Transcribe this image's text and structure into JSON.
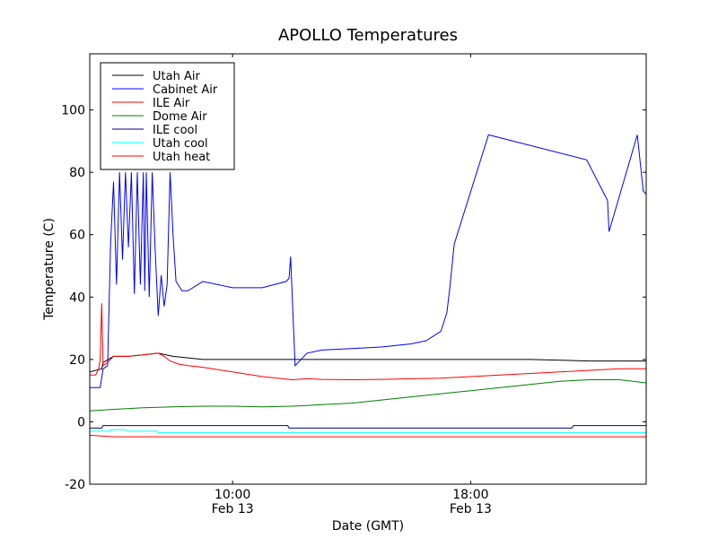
{
  "chart_data": {
    "type": "line",
    "title": "APOLLO Temperatures",
    "xlabel": "Date (GMT)",
    "ylabel": "Temperature (C)",
    "x_unit": "hours (GMT)",
    "xlim": [
      5.2,
      23.9
    ],
    "ylim": [
      -20,
      118
    ],
    "yticks": [
      -20,
      0,
      20,
      40,
      60,
      80,
      100
    ],
    "xticks": [
      {
        "value": 10,
        "label": "10:00",
        "sublabel": "Feb 13"
      },
      {
        "value": 18,
        "label": "18:00",
        "sublabel": "Feb 13"
      }
    ],
    "grid": false,
    "legend_position": "top-left",
    "series": [
      {
        "name": "Utah Air",
        "color": "#000000",
        "x": [
          5.2,
          5.6,
          5.65,
          6.0,
          6.5,
          7.0,
          7.5,
          8.0,
          9.0,
          10.0,
          11.0,
          11.8,
          12.5,
          14.0,
          16.0,
          18.0,
          20.0,
          22.0,
          23.9
        ],
        "y": [
          16,
          17,
          19,
          21,
          21,
          21.5,
          22,
          21,
          20,
          20,
          20,
          20,
          20,
          20,
          20,
          20,
          20,
          19.5,
          19.5
        ]
      },
      {
        "name": "Cabinet Air",
        "color": "#0000ff",
        "x": [
          5.2,
          5.55,
          5.65,
          5.8,
          5.9,
          6.0,
          6.1,
          6.2,
          6.3,
          6.4,
          6.5,
          6.6,
          6.7,
          6.8,
          6.9,
          7.0,
          7.05,
          7.1,
          7.2,
          7.3,
          7.4,
          7.5,
          7.6,
          7.7,
          7.8,
          7.9,
          8.0,
          8.1,
          8.3,
          8.5,
          9.0,
          10.0,
          11.0,
          11.8,
          11.9,
          11.95,
          12.1,
          12.5,
          13.0,
          14.0,
          15.0,
          16.0,
          16.5,
          17.0,
          17.2,
          17.3,
          17.45,
          18.6,
          21.9,
          22.6,
          22.65,
          23.6,
          23.7,
          23.8,
          23.9
        ],
        "y": [
          11,
          11,
          17,
          18,
          57,
          77,
          44,
          80,
          52,
          80,
          56,
          80,
          41,
          80,
          44,
          80,
          42,
          80,
          40,
          80,
          55,
          34,
          47,
          37,
          44,
          80,
          60,
          45,
          42,
          42,
          45,
          43,
          43,
          45,
          46,
          53,
          18,
          22,
          23,
          23.5,
          24,
          25,
          26,
          29,
          35,
          43,
          57,
          92,
          84,
          71,
          61,
          92,
          83,
          74,
          73
        ]
      },
      {
        "name": "ILE Air",
        "color": "#ff0000",
        "x": [
          5.2,
          5.4,
          5.5,
          5.55,
          5.6,
          5.65,
          5.8,
          6.0,
          6.5,
          7.0,
          7.5,
          7.7,
          7.9,
          8.2,
          8.5,
          9.0,
          10.0,
          11.0,
          11.5,
          12.0,
          12.5,
          13.0,
          14.0,
          15.0,
          16.0,
          17.0,
          18.0,
          19.0,
          20.0,
          21.0,
          22.0,
          23.0,
          23.9
        ],
        "y": [
          15,
          15,
          17,
          20,
          38,
          18,
          19,
          21,
          21,
          21.5,
          22,
          21,
          19.5,
          18.5,
          18,
          17.5,
          16,
          14.5,
          14,
          13.5,
          13.8,
          13.6,
          13.5,
          13.6,
          13.8,
          14,
          14.5,
          15,
          15.5,
          16,
          16.5,
          17,
          17
        ]
      },
      {
        "name": "Dome Air",
        "color": "#008000",
        "x": [
          5.2,
          6.0,
          7.0,
          8.0,
          9.0,
          10.0,
          11.0,
          12.0,
          12.5,
          13.0,
          14.0,
          15.0,
          16.0,
          17.0,
          18.0,
          19.0,
          20.0,
          21.0,
          22.0,
          23.0,
          23.9
        ],
        "y": [
          3.5,
          4.0,
          4.5,
          4.8,
          5.0,
          5.0,
          4.8,
          5.0,
          5.2,
          5.5,
          6.0,
          7.0,
          8.0,
          9.0,
          10.0,
          11.0,
          12.0,
          13.0,
          13.5,
          13.5,
          12.5
        ]
      },
      {
        "name": "ILE cool",
        "color": "#000080",
        "x": [
          5.2,
          5.6,
          5.65,
          11.85,
          11.9,
          21.4,
          21.45,
          23.9
        ],
        "y": [
          -2,
          -2,
          -1.2,
          -1.2,
          -2,
          -2,
          -1.2,
          -1.2
        ]
      },
      {
        "name": "Utah cool",
        "color": "#00ffff",
        "x": [
          5.2,
          5.9,
          5.95,
          6.4,
          6.45,
          7.45,
          7.5,
          23.9
        ],
        "y": [
          -3,
          -3,
          -2.5,
          -2.5,
          -3,
          -3,
          -3.5,
          -3.5
        ]
      },
      {
        "name": "Utah heat",
        "color": "#ff0000",
        "x": [
          5.2,
          6.0,
          23.9
        ],
        "y": [
          -4.3,
          -4.8,
          -4.8
        ]
      }
    ]
  }
}
